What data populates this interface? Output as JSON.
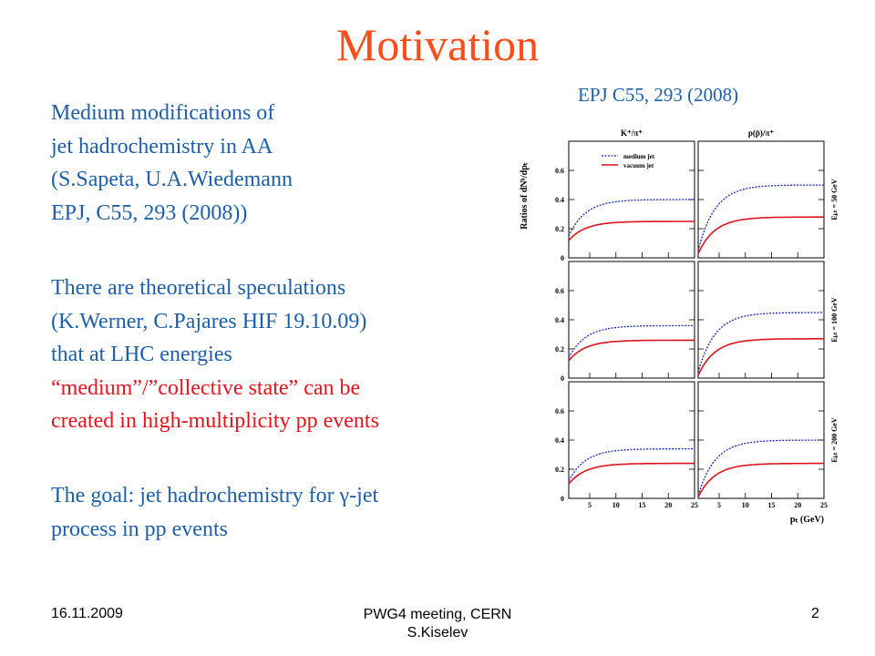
{
  "slide": {
    "title": "Motivation",
    "reference": "EPJ C55, 293 (2008)",
    "para1": [
      "Medium modifications of",
      "jet hadrochemistry in AA",
      "(S.Sapeta, U.A.Wiedemann",
      "EPJ, C55, 293 (2008))"
    ],
    "para2_blue": [
      "There are theoretical speculations",
      "(K.Werner, C.Pajares HIF 19.10.09)",
      "that at LHC energies"
    ],
    "para2_red": [
      "“medium”/”collective  state”  can be",
      "created in high-multiplicity  pp events"
    ],
    "para3": [
      "The goal: jet hadrochemistry  for γ-jet",
      "process in pp events"
    ],
    "footer": {
      "date": "16.11.2009",
      "center_line1": "PWG4 meeting, CERN",
      "center_line2": "S.Kiselev",
      "page": "2"
    }
  },
  "figure": {
    "y_axis_label": "Ratios of dNʰ/dpₜ",
    "x_axis_label": "pₜ (GeV)",
    "col_titles": [
      "K⁺/π⁺",
      "p(p̄)/π⁺"
    ],
    "row_labels": [
      "Eⱼₑₜ = 50 GeV",
      "Eⱼₑₜ = 100 GeV",
      "Eⱼₑₜ = 200 GeV"
    ],
    "y_ticks": [
      "0",
      "0.2",
      "0.4",
      "0.6"
    ],
    "x_ticks": [
      "5",
      "10",
      "15",
      "20",
      "25"
    ],
    "legend": [
      "medium jet",
      "vacuum jet"
    ],
    "colors": {
      "medium": "#1a2bb8",
      "vacuum": "#d9141e"
    }
  },
  "chart_data": {
    "type": "line",
    "x_range": [
      1,
      25
    ],
    "y_range": [
      0,
      0.8
    ],
    "panels": [
      {
        "row": 0,
        "col": 0,
        "series": [
          {
            "name": "medium jet",
            "plateau": 0.4,
            "start": 0.15
          },
          {
            "name": "vacuum jet",
            "plateau": 0.25,
            "start": 0.12
          }
        ]
      },
      {
        "row": 0,
        "col": 1,
        "series": [
          {
            "name": "medium jet",
            "plateau": 0.5,
            "start": 0.05
          },
          {
            "name": "vacuum jet",
            "plateau": 0.28,
            "start": 0.03
          }
        ]
      },
      {
        "row": 1,
        "col": 0,
        "series": [
          {
            "name": "medium jet",
            "plateau": 0.36,
            "start": 0.14
          },
          {
            "name": "vacuum jet",
            "plateau": 0.26,
            "start": 0.12
          }
        ]
      },
      {
        "row": 1,
        "col": 1,
        "series": [
          {
            "name": "medium jet",
            "plateau": 0.45,
            "start": 0.04
          },
          {
            "name": "vacuum jet",
            "plateau": 0.27,
            "start": 0.02
          }
        ]
      },
      {
        "row": 2,
        "col": 0,
        "series": [
          {
            "name": "medium jet",
            "plateau": 0.34,
            "start": 0.12
          },
          {
            "name": "vacuum jet",
            "plateau": 0.24,
            "start": 0.1
          }
        ]
      },
      {
        "row": 2,
        "col": 1,
        "series": [
          {
            "name": "medium jet",
            "plateau": 0.4,
            "start": 0.02
          },
          {
            "name": "vacuum jet",
            "plateau": 0.24,
            "start": 0.01
          }
        ]
      }
    ]
  }
}
